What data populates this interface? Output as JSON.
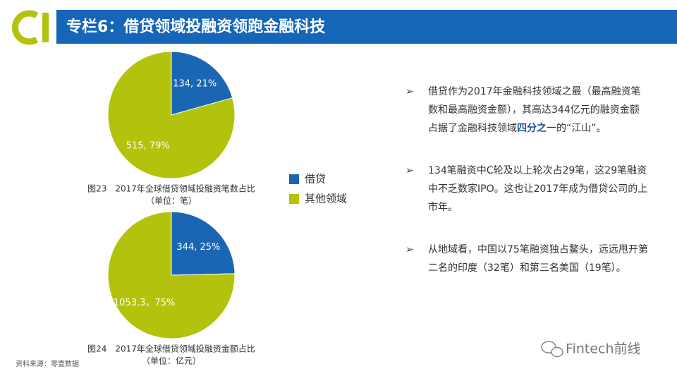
{
  "header": {
    "title": "专栏6：借贷领域投融资领跑金融科技"
  },
  "chart_data": [
    {
      "type": "pie",
      "title": "图23　2017年全球借贷领域投融资笔数占比",
      "subtitle": "（单位：笔）",
      "categories": [
        "借贷",
        "其他领域"
      ],
      "values": [
        134,
        515
      ],
      "value_labels": [
        "134, 21%",
        "515, 79%"
      ],
      "colors": [
        "#1a66b3",
        "#b3c20c"
      ]
    },
    {
      "type": "pie",
      "title": "图24　2017年全球借贷领域投融资金额占比",
      "subtitle": "（单位：亿元）",
      "categories": [
        "借贷",
        "其他领域"
      ],
      "values": [
        344,
        1053.3
      ],
      "value_labels": [
        "344, 25%",
        "1053.3，75%"
      ],
      "colors": [
        "#1a66b3",
        "#b3c20c"
      ]
    }
  ],
  "bullets": [
    {
      "parts": [
        "借贷作为2017年金融科技领域之最（最高融资笔数和最高融资金额），其高达344亿元的融资金额占据了金融科技领域",
        "四分之",
        "一的“江山”。"
      ]
    },
    {
      "parts": [
        "134笔融资中C轮及以上轮次占29笔，这29笔融资中不乏数家IPO。这也让2017年成为借贷公司的上市年。"
      ]
    },
    {
      "parts": [
        "从地域看，中国以75笔融资独占鳌头，远远甩开第二名的印度（32笔）和第三名美国（19笔）。"
      ]
    }
  ],
  "source": "资料来源：零壹数据",
  "watermark": "Fintech前线"
}
